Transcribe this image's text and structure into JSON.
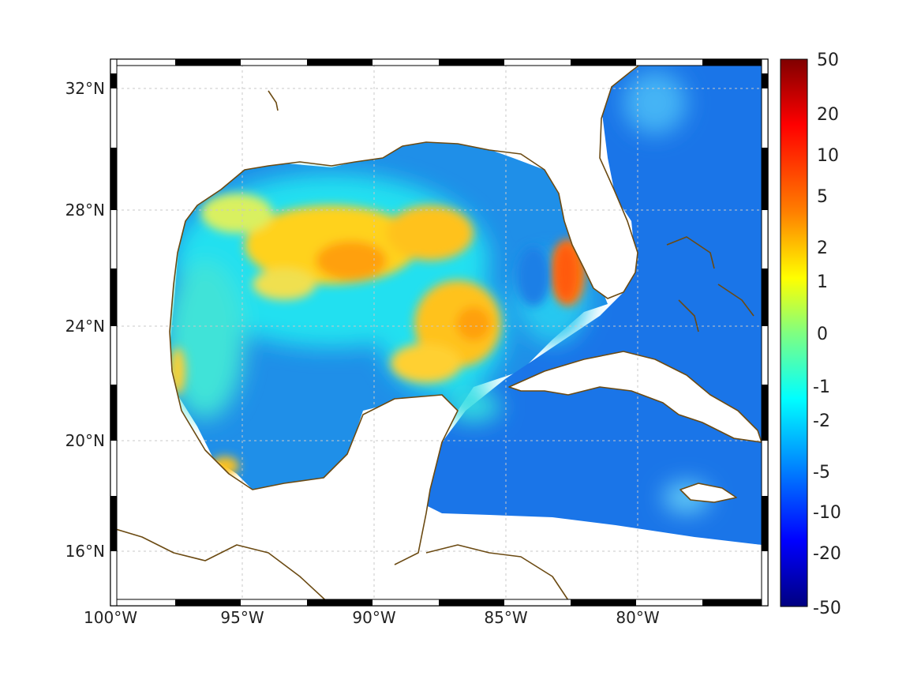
{
  "map": {
    "region": "Gulf of Mexico and Caribbean",
    "projection": "Mercator",
    "lon_range": [
      -100,
      -75
    ],
    "lat_range": [
      14.3,
      33
    ],
    "colormap": "jet",
    "coastline_color": "#6b4a12",
    "frame_colors": [
      "#000000",
      "#ffffff"
    ],
    "grid": true,
    "lat_ticks": [
      "32°N",
      "28°N",
      "24°N",
      "20°N",
      "16°N"
    ],
    "lon_ticks": [
      "100°W",
      "95°W",
      "90°W",
      "85°W",
      "80°W"
    ]
  },
  "colorbar": {
    "labels": [
      "50",
      "20",
      "10",
      "5",
      "2",
      "1",
      "0",
      "-1",
      "-2",
      "-5",
      "-10",
      "-20",
      "-50"
    ],
    "max_value": 50,
    "min_value": -50,
    "colors_top_to_bottom": [
      "#800000",
      "#ff0000",
      "#ff8000",
      "#ffff00",
      "#80ff80",
      "#00ffff",
      "#0080ff",
      "#0000ff",
      "#000080"
    ]
  }
}
